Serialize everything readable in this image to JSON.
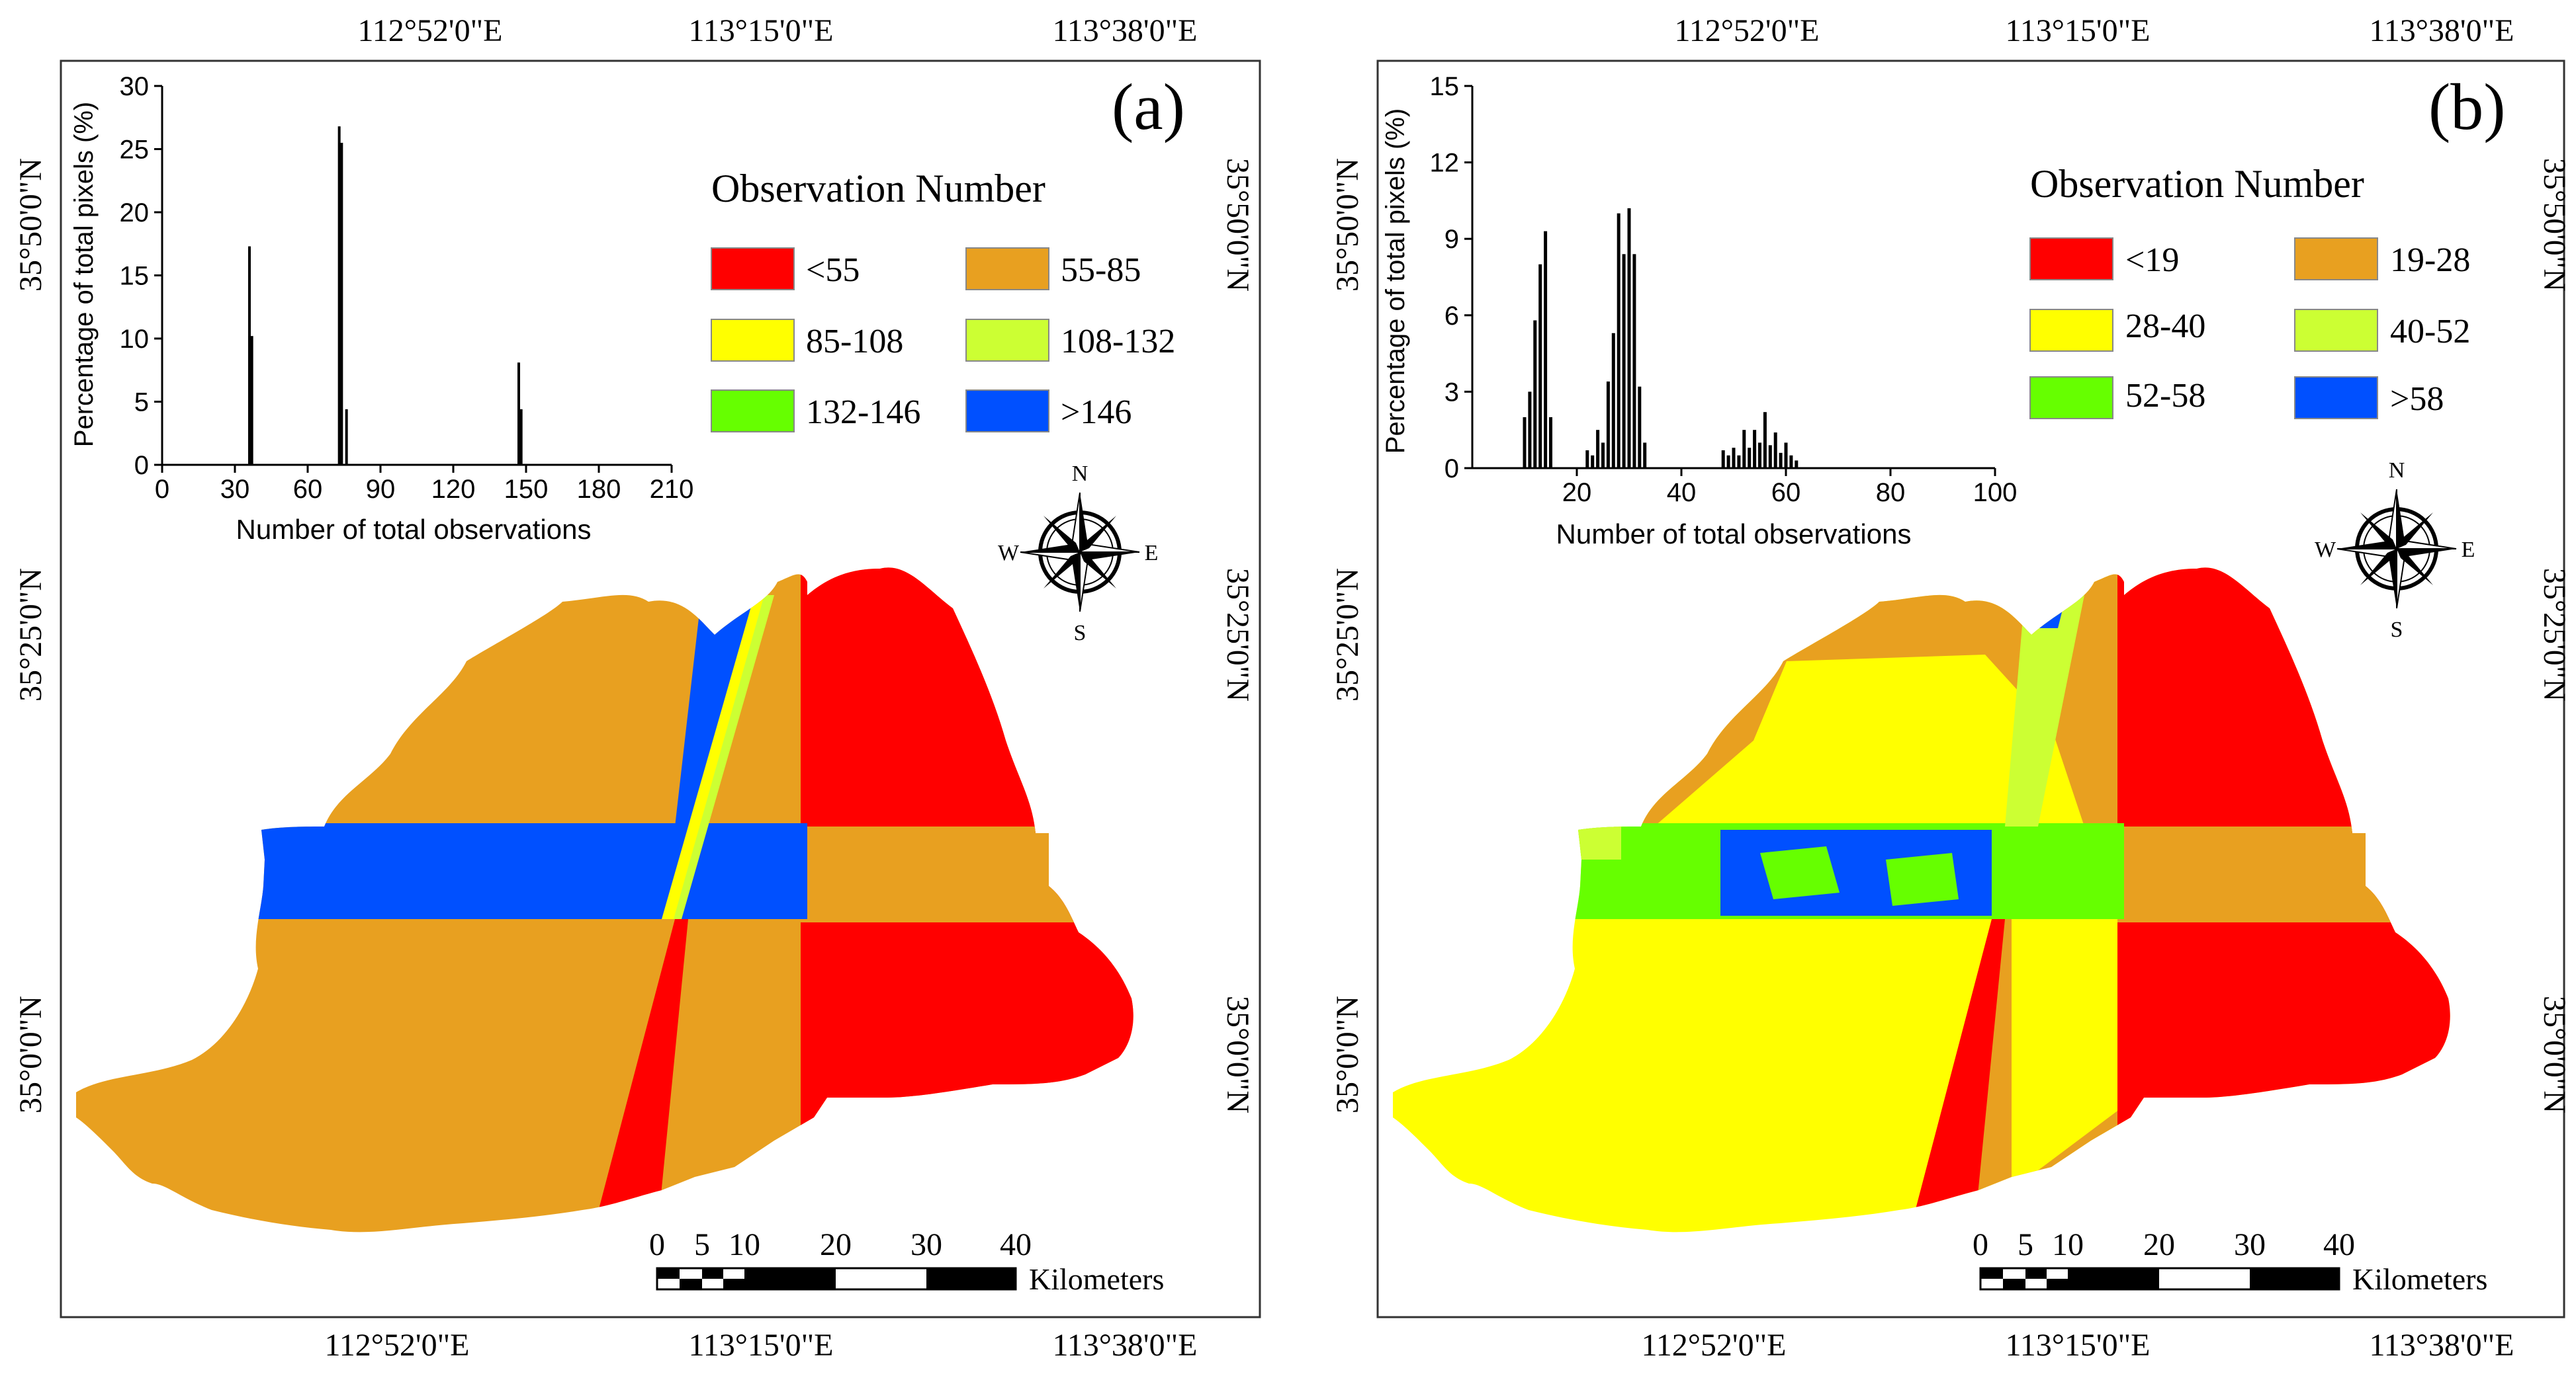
{
  "panels": [
    {
      "id": "a",
      "label": "(a)",
      "coords": {
        "top": [
          "112°52'0\"E",
          "113°15'0\"E",
          "113°38'0\"E"
        ],
        "bottom": [
          "112°52'0\"E",
          "113°15'0\"E",
          "113°38'0\"E"
        ],
        "left": [
          "35°50'0\"N",
          "35°25'0\"N",
          "35°0'0\"N"
        ],
        "right": [
          "35°50'0\"N",
          "35°25'0\"N",
          "35°0'0\"N"
        ]
      },
      "legend": {
        "title": "Observation Number",
        "items": [
          {
            "label": "<55",
            "color": "#ff0000"
          },
          {
            "label": "55-85",
            "color": "#e8a020"
          },
          {
            "label": "85-108",
            "color": "#ffff00"
          },
          {
            "label": "108-132",
            "color": "#ccff33"
          },
          {
            "label": "132-146",
            "color": "#66ff00"
          },
          {
            "label": ">146",
            "color": "#0050ff"
          }
        ]
      },
      "compass": {
        "n": "N",
        "s": "S",
        "e": "E",
        "w": "W"
      },
      "scalebar": {
        "ticks": [
          "0",
          "5",
          "10",
          "20",
          "30",
          "40"
        ],
        "unit": "Kilometers"
      },
      "chart_data": {
        "type": "bar",
        "xlabel": "Number of total observations",
        "ylabel": "Percentage of total pixels (%)",
        "xlim": [
          0,
          210
        ],
        "ylim": [
          0,
          30
        ],
        "xticks": [
          "0",
          "30",
          "60",
          "90",
          "120",
          "150",
          "180",
          "210"
        ],
        "yticks": [
          "0",
          "5",
          "10",
          "15",
          "20",
          "25",
          "30"
        ],
        "bars": [
          {
            "x": 36,
            "y": 17.3
          },
          {
            "x": 37,
            "y": 10.2
          },
          {
            "x": 73,
            "y": 26.8
          },
          {
            "x": 74,
            "y": 25.5
          },
          {
            "x": 76,
            "y": 4.4
          },
          {
            "x": 147,
            "y": 8.1
          },
          {
            "x": 148,
            "y": 4.4
          }
        ]
      }
    },
    {
      "id": "b",
      "label": "(b)",
      "coords": {
        "top": [
          "112°52'0\"E",
          "113°15'0\"E",
          "113°38'0\"E"
        ],
        "bottom": [
          "112°52'0\"E",
          "113°15'0\"E",
          "113°38'0\"E"
        ],
        "left": [
          "35°50'0\"N",
          "35°25'0\"N",
          "35°0'0\"N"
        ],
        "right": [
          "35°50'0\"N",
          "35°25'0\"N",
          "35°0'0\"N"
        ]
      },
      "legend": {
        "title": "Observation Number",
        "items": [
          {
            "label": "<19",
            "color": "#ff0000"
          },
          {
            "label": "19-28",
            "color": "#e8a020"
          },
          {
            "label": "28-40",
            "color": "#ffff00"
          },
          {
            "label": "40-52",
            "color": "#ccff33"
          },
          {
            "label": "52-58",
            "color": "#66ff00"
          },
          {
            "label": ">58",
            "color": "#0050ff"
          }
        ]
      },
      "compass": {
        "n": "N",
        "s": "S",
        "e": "E",
        "w": "W"
      },
      "scalebar": {
        "ticks": [
          "0",
          "5",
          "10",
          "20",
          "30",
          "40"
        ],
        "unit": "Kilometers"
      },
      "chart_data": {
        "type": "bar",
        "xlabel": "Number of total observations",
        "ylabel": "Percentage of total pixels (%)",
        "xlim": [
          0,
          100
        ],
        "ylim": [
          0,
          15
        ],
        "xticks": [
          "20",
          "40",
          "60",
          "80",
          "100"
        ],
        "yticks": [
          "0",
          "3",
          "6",
          "9",
          "12",
          "15"
        ],
        "bars": [
          {
            "x": 10,
            "y": 2.0
          },
          {
            "x": 11,
            "y": 3.0
          },
          {
            "x": 12,
            "y": 5.8
          },
          {
            "x": 13,
            "y": 8.0
          },
          {
            "x": 14,
            "y": 9.3
          },
          {
            "x": 15,
            "y": 2.0
          },
          {
            "x": 22,
            "y": 0.7
          },
          {
            "x": 23,
            "y": 0.5
          },
          {
            "x": 24,
            "y": 1.5
          },
          {
            "x": 25,
            "y": 1.0
          },
          {
            "x": 26,
            "y": 3.4
          },
          {
            "x": 27,
            "y": 5.3
          },
          {
            "x": 28,
            "y": 10.0
          },
          {
            "x": 29,
            "y": 8.4
          },
          {
            "x": 30,
            "y": 10.2
          },
          {
            "x": 31,
            "y": 8.4
          },
          {
            "x": 32,
            "y": 3.2
          },
          {
            "x": 33,
            "y": 1.0
          },
          {
            "x": 48,
            "y": 0.7
          },
          {
            "x": 49,
            "y": 0.5
          },
          {
            "x": 50,
            "y": 0.8
          },
          {
            "x": 51,
            "y": 0.5
          },
          {
            "x": 52,
            "y": 1.5
          },
          {
            "x": 53,
            "y": 0.8
          },
          {
            "x": 54,
            "y": 1.5
          },
          {
            "x": 55,
            "y": 1.0
          },
          {
            "x": 56,
            "y": 2.2
          },
          {
            "x": 57,
            "y": 0.9
          },
          {
            "x": 58,
            "y": 1.4
          },
          {
            "x": 59,
            "y": 0.6
          },
          {
            "x": 60,
            "y": 1.0
          },
          {
            "x": 61,
            "y": 0.5
          },
          {
            "x": 62,
            "y": 0.3
          }
        ]
      }
    }
  ]
}
